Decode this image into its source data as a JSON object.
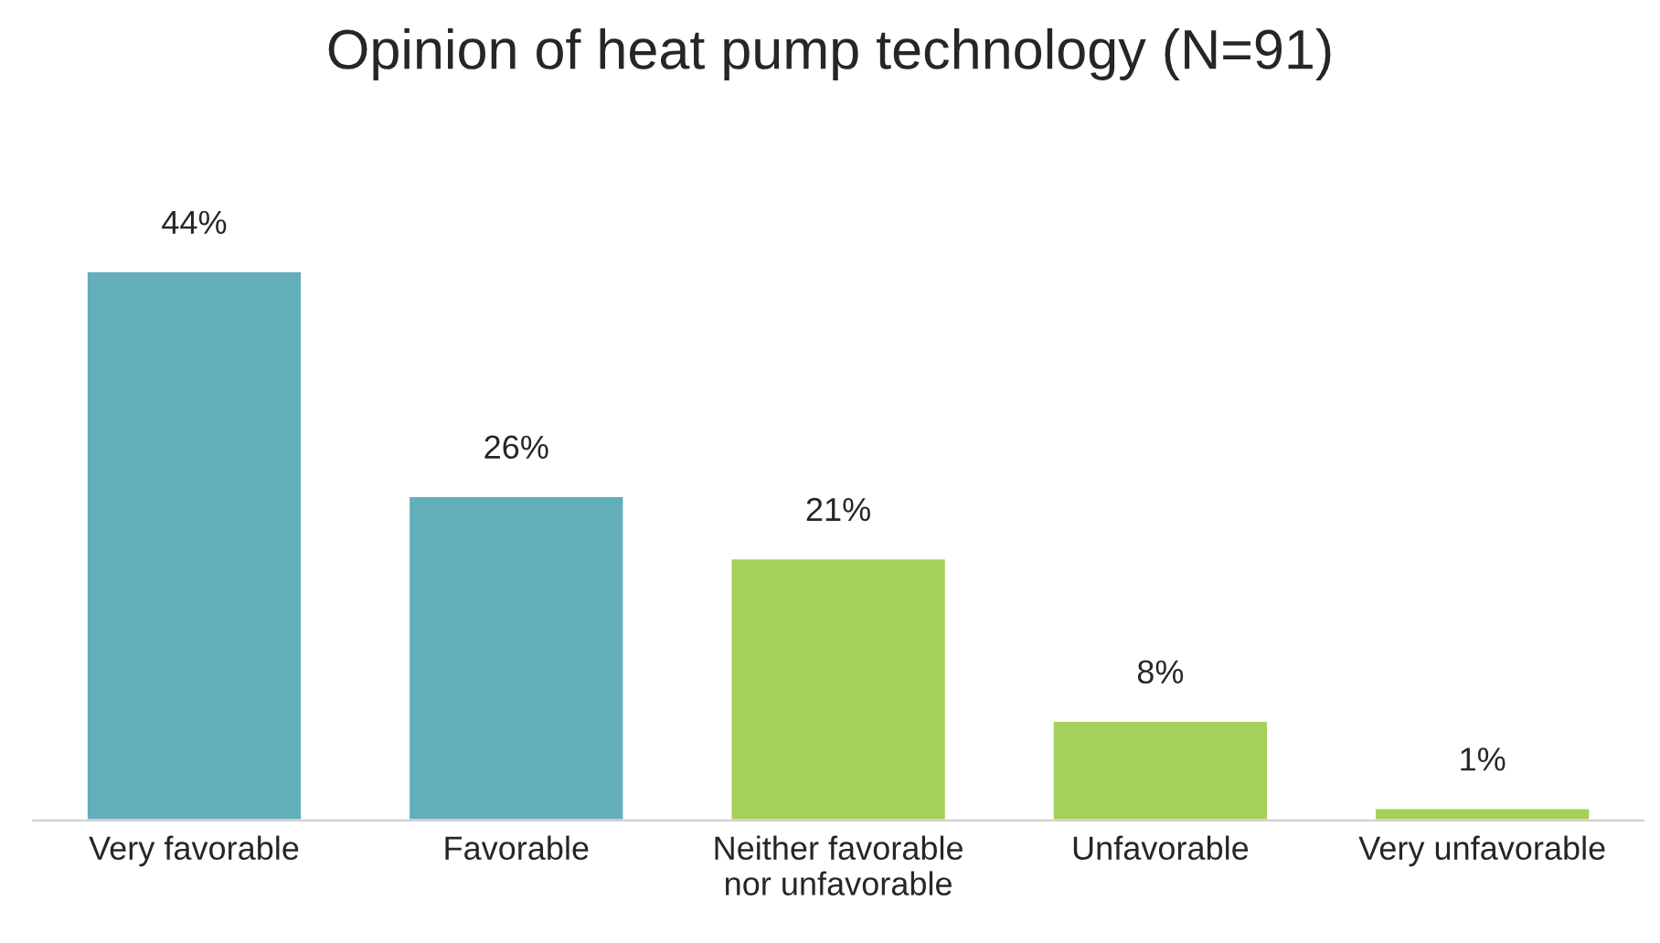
{
  "chart_data": {
    "type": "bar",
    "title": "Opinion of heat pump technology (N=91)",
    "categories": [
      "Very favorable",
      "Favorable",
      "Neither favorable\nnor unfavorable",
      "Unfavorable",
      "Very unfavorable"
    ],
    "values": [
      44,
      26,
      21,
      8,
      1
    ],
    "colors": [
      "#62afbb",
      "#62afbb",
      "#a5d05a",
      "#a5d05a",
      "#a5d05a"
    ],
    "value_labels": [
      "44%",
      "26%",
      "21%",
      "8%",
      "1%"
    ],
    "grid": false,
    "legend": false
  }
}
